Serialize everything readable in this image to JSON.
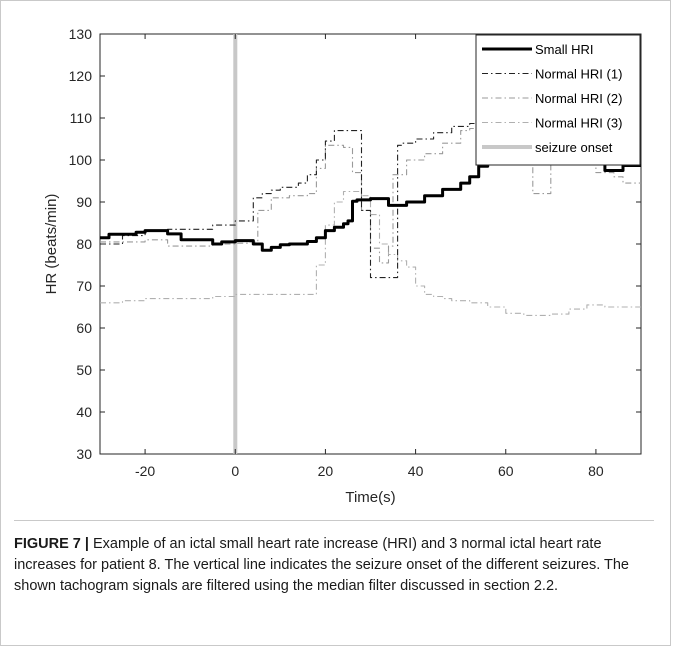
{
  "chart_data": {
    "type": "line",
    "xlabel": "Time(s)",
    "ylabel": "HR (beats/min)",
    "xlim": [
      -30,
      90
    ],
    "ylim": [
      30,
      130
    ],
    "xticks": [
      -20,
      0,
      20,
      40,
      60,
      80
    ],
    "yticks": [
      30,
      40,
      50,
      60,
      70,
      80,
      90,
      100,
      110,
      120,
      130
    ],
    "grid": false,
    "legend_position": "top-right",
    "series": [
      {
        "name": "Small HRI",
        "style": "solid-thick",
        "color": "#000000",
        "x": [
          -30,
          -28,
          -22,
          -20,
          -15,
          -12,
          -7,
          -5,
          -3,
          0,
          4,
          6,
          8,
          10,
          12,
          16,
          18,
          20,
          22,
          24,
          25,
          26,
          27,
          30,
          32,
          34,
          36,
          38,
          42,
          46,
          50,
          52,
          54,
          56,
          58,
          60,
          62,
          66,
          70,
          74,
          78,
          82,
          84,
          86,
          90
        ],
        "y": [
          81.5,
          82.3,
          82.8,
          83.2,
          82.4,
          81,
          81,
          80,
          80.5,
          80.8,
          80,
          78.5,
          79.2,
          79.8,
          80,
          80.6,
          81.5,
          83.2,
          84,
          84.8,
          85.5,
          90.2,
          90.5,
          90.8,
          90.8,
          89.2,
          89.2,
          90,
          91.5,
          93,
          94.5,
          96,
          98.5,
          99.5,
          100.2,
          100.5,
          100.5,
          100.5,
          100,
          100.3,
          100,
          97.5,
          97.5,
          98.7,
          98.7
        ]
      },
      {
        "name": "Normal HRI (1)",
        "style": "dash-dot",
        "color": "#222222",
        "x": [
          -30,
          -25,
          -20,
          -15,
          -10,
          -5,
          0,
          3,
          4,
          6,
          8,
          10,
          14,
          16,
          18,
          20,
          22,
          24,
          26,
          28,
          30,
          32,
          34,
          36,
          37,
          40,
          44,
          48,
          52,
          54,
          56
        ],
        "y": [
          80,
          82,
          83,
          83.5,
          83.5,
          84.5,
          85.5,
          85.5,
          91,
          92,
          92.8,
          93.5,
          94.5,
          96.5,
          100,
          104.5,
          107,
          107,
          107,
          88,
          72,
          72,
          72,
          103.5,
          104,
          105,
          106.5,
          108,
          108.7,
          109,
          109
        ]
      },
      {
        "name": "Normal HRI (2)",
        "style": "dash-dot",
        "color": "#9a9a9a",
        "x": [
          -30,
          -25,
          -20,
          -15,
          -10,
          -5,
          0,
          3,
          5,
          8,
          12,
          16,
          18,
          20,
          22,
          24,
          26,
          28,
          30,
          32,
          34,
          35,
          38,
          42,
          46,
          50,
          52,
          54,
          56,
          58,
          60,
          62,
          64,
          66,
          68,
          70,
          72,
          76,
          80,
          84,
          86,
          88,
          90
        ],
        "y": [
          80.5,
          80.5,
          81,
          79.5,
          79.5,
          80,
          80.2,
          80.5,
          88,
          91,
          91.5,
          92,
          98,
          103.5,
          103.5,
          103,
          97,
          88,
          79,
          75.5,
          79.5,
          96.5,
          100,
          101.5,
          104,
          107,
          107.5,
          107.5,
          107.5,
          108,
          108,
          108,
          108,
          92,
          92,
          100,
          100,
          99,
          97,
          96,
          94.5,
          94.5,
          94.5
        ]
      },
      {
        "name": "Normal HRI (3)",
        "style": "dash-dot",
        "color": "#b0b0b0",
        "x": [
          -30,
          -25,
          -20,
          -15,
          -10,
          -5,
          0,
          4,
          8,
          12,
          16,
          18,
          20,
          22,
          24,
          26,
          28,
          30,
          32,
          34,
          36,
          38,
          40,
          42,
          44,
          46,
          48,
          50,
          52,
          54,
          56,
          60,
          64,
          70,
          74,
          78,
          82,
          86,
          90
        ],
        "y": [
          66,
          66.5,
          67,
          67,
          67,
          67.5,
          68,
          68,
          68,
          68,
          68,
          75,
          84.5,
          90,
          92.5,
          92.5,
          91.5,
          87,
          80,
          77.5,
          76,
          74.5,
          70,
          68,
          67.5,
          67,
          66.5,
          66.5,
          66,
          66,
          65,
          63.5,
          63,
          63.3,
          64.5,
          65.5,
          65,
          65,
          64.7
        ]
      },
      {
        "name": "seizure onset",
        "style": "vertical-line",
        "color": "#c8c8c8",
        "x": [
          0,
          0
        ],
        "y": [
          30,
          130
        ]
      }
    ]
  },
  "caption": {
    "label": "FIGURE 7 |",
    "text": " Example of an ictal small heart rate increase (HRI) and 3 normal ictal heart rate increases for patient 8. The vertical line indicates the seizure onset of the different seizures. The shown tachogram signals are filtered using the median filter discussed in section 2.2."
  }
}
